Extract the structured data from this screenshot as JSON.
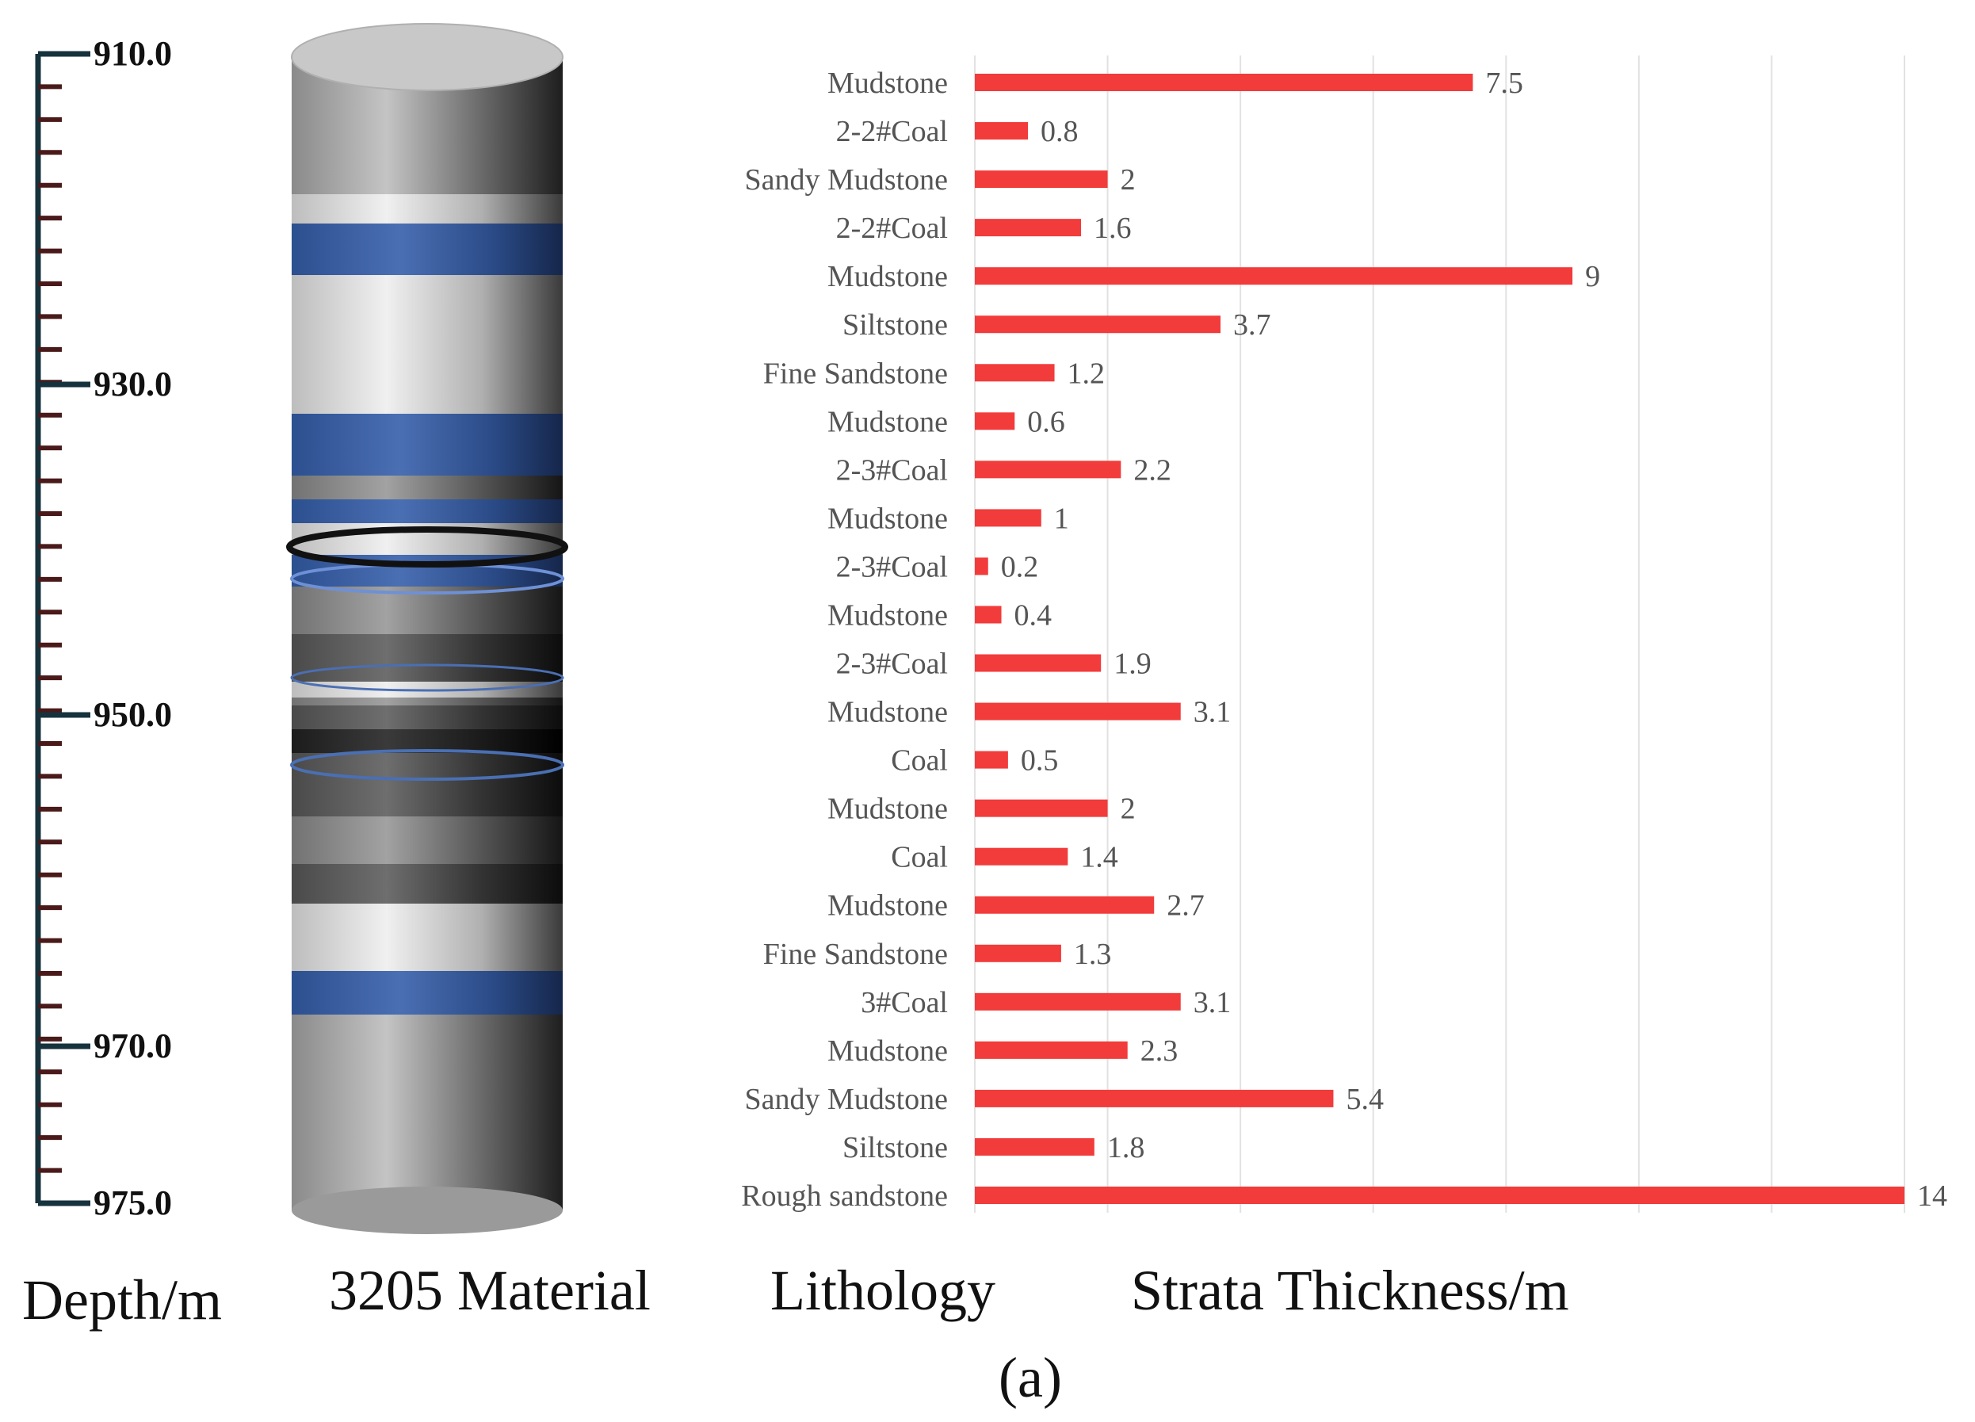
{
  "depth_scale": {
    "label": "Depth/m",
    "ticks": [
      "910.0",
      "930.0",
      "950.0",
      "970.0",
      "975.0"
    ],
    "tick_values": [
      910,
      930,
      950,
      970,
      975
    ],
    "range": [
      910,
      975
    ]
  },
  "column": {
    "label": "3205 Material",
    "colors": {
      "blue": "#2e4f8c",
      "light": "#d9d9d9",
      "dark": "#1a1a1a",
      "gray": "#8c8c8c"
    }
  },
  "footer": {
    "lithology_label": "Lithology",
    "thickness_label": "Strata Thickness/m"
  },
  "caption": "(a)",
  "chart_data": {
    "type": "bar",
    "orientation": "horizontal",
    "bar_color": "#f23b3b",
    "grid": true,
    "xlim": [
      0,
      14
    ],
    "categories": [
      "Mudstone",
      "2-2#Coal",
      "Sandy Mudstone",
      "2-2#Coal",
      "Mudstone",
      "Siltstone",
      "Fine Sandstone",
      "Mudstone",
      "2-3#Coal",
      "Mudstone",
      "2-3#Coal",
      "Mudstone",
      "2-3#Coal",
      "Mudstone",
      "Coal",
      "Mudstone",
      "Coal",
      "Mudstone",
      "Fine Sandstone",
      "3#Coal",
      "Mudstone",
      "Sandy Mudstone",
      "Siltstone",
      "Rough sandstone"
    ],
    "values": [
      7.5,
      0.8,
      2,
      1.6,
      9,
      3.7,
      1.2,
      0.6,
      2.2,
      1,
      0.2,
      0.4,
      1.9,
      3.1,
      0.5,
      2,
      1.4,
      2.7,
      1.3,
      3.1,
      2.3,
      5.4,
      1.8,
      14
    ],
    "value_labels": [
      "7.5",
      "0.8",
      "2",
      "1.6",
      "9",
      "3.7",
      "1.2",
      "0.6",
      "2.2",
      "1",
      "0.2",
      "0.4",
      "1.9",
      "3.1",
      "0.5",
      "2",
      "1.4",
      "2.7",
      "1.3",
      "3.1",
      "2.3",
      "5.4",
      "1.8",
      "14"
    ]
  }
}
